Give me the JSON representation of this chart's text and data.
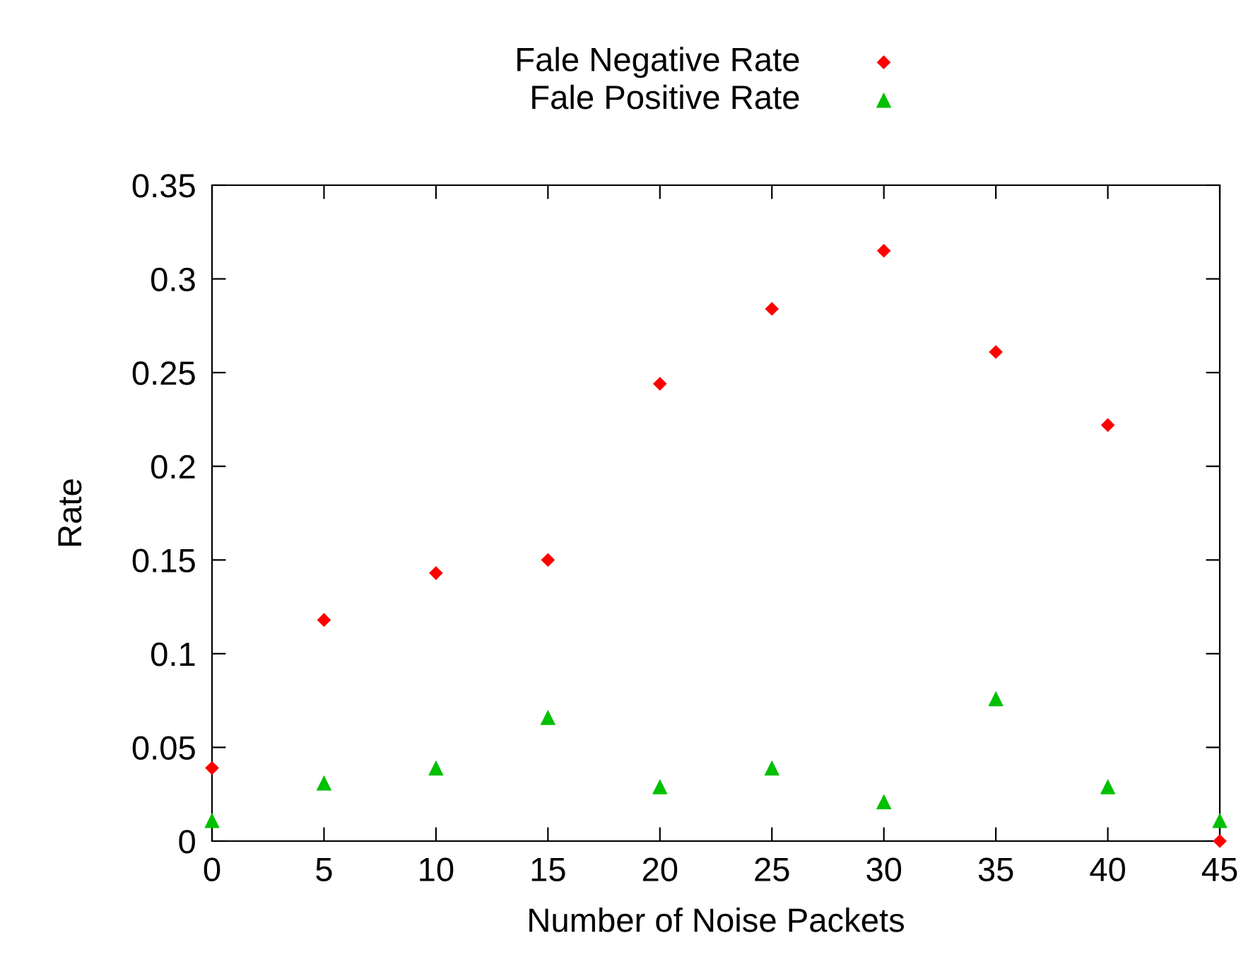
{
  "chart_data": {
    "type": "scatter",
    "xlabel": "Number of Noise Packets",
    "ylabel": "Rate",
    "x": [
      0,
      5,
      10,
      15,
      20,
      25,
      30,
      35,
      40,
      45
    ],
    "series": [
      {
        "name": "Fale Negative Rate",
        "color": "#ff0000",
        "marker": "diamond",
        "values": [
          0.039,
          0.118,
          0.143,
          0.15,
          0.244,
          0.284,
          0.315,
          0.261,
          0.222,
          0.0
        ]
      },
      {
        "name": "Fale Positive Rate",
        "color": "#00c000",
        "marker": "triangle",
        "values": [
          0.011,
          0.031,
          0.039,
          0.066,
          0.029,
          0.039,
          0.021,
          0.076,
          0.029,
          0.011
        ]
      }
    ],
    "xlim": [
      0,
      45
    ],
    "ylim": [
      0,
      0.35
    ],
    "xticks": [
      0,
      5,
      10,
      15,
      20,
      25,
      30,
      35,
      40,
      45
    ],
    "yticks": [
      0,
      0.05,
      0.1,
      0.15,
      0.2,
      0.25,
      0.3,
      0.35
    ],
    "grid": false,
    "legend": "top"
  }
}
